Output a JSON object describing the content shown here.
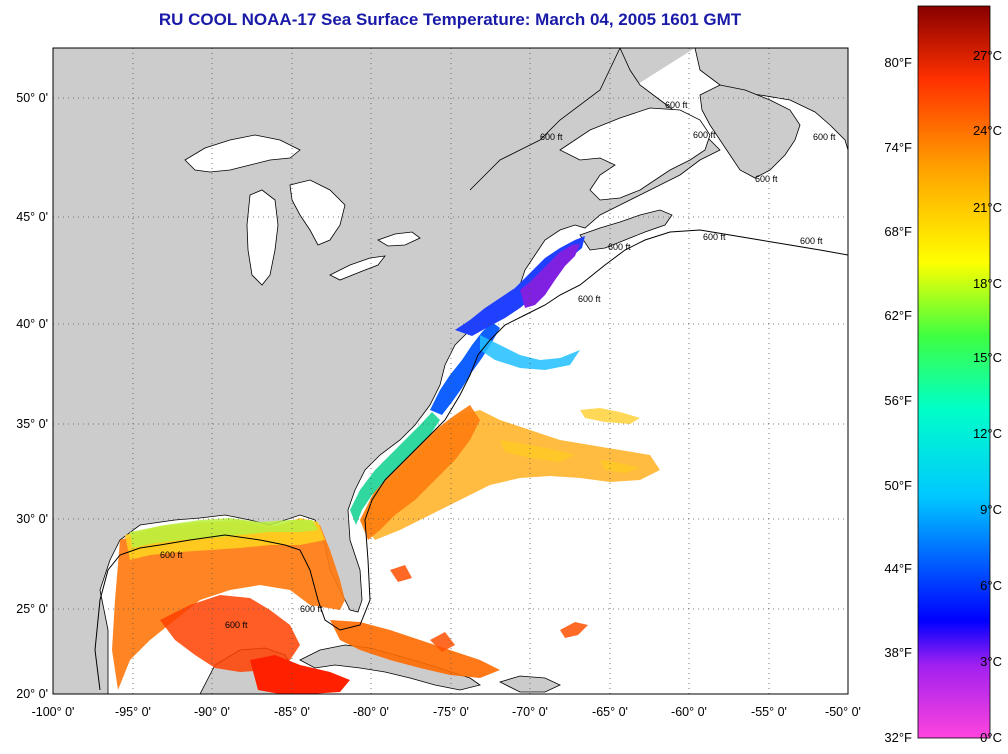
{
  "title": "RU COOL  NOAA-17  Sea Surface Temperature:  March 04, 2005 1601 GMT",
  "axes": {
    "lon_labels": [
      "-100° 0'",
      "-95° 0'",
      "-90° 0'",
      "-85° 0'",
      "-80° 0'",
      "-75° 0'",
      "-70° 0'",
      "-65° 0'",
      "-60° 0'",
      "-55° 0'",
      "-50° 0'"
    ],
    "lat_labels": [
      "50° 0'",
      "45° 0'",
      "40° 0'",
      "35° 0'",
      "30° 0'",
      "25° 0'",
      "20° 0'"
    ],
    "lon_range": [
      -100,
      -50
    ],
    "lat_range": [
      20,
      52.5
    ]
  },
  "isobath_label": "600 ft",
  "colorbar": {
    "fahrenheit_labels": [
      "80°F",
      "74°F",
      "68°F",
      "62°F",
      "56°F",
      "50°F",
      "44°F",
      "38°F",
      "32°F"
    ],
    "celsius_labels": [
      "27°C",
      "24°C",
      "21°C",
      "18°C",
      "15°C",
      "12°C",
      "9°C",
      "6°C",
      "3°C",
      "0°C"
    ],
    "range_c": [
      0,
      28
    ],
    "colors": [
      "#ff44dd",
      "#a020f0",
      "#0000ff",
      "#00c8ff",
      "#00ffc8",
      "#40ff40",
      "#ffff00",
      "#ffa000",
      "#ff3000",
      "#880000"
    ]
  },
  "colors": {
    "land": "#cccccc",
    "ocean": "#ffffff",
    "title": "#1a1aa8"
  }
}
